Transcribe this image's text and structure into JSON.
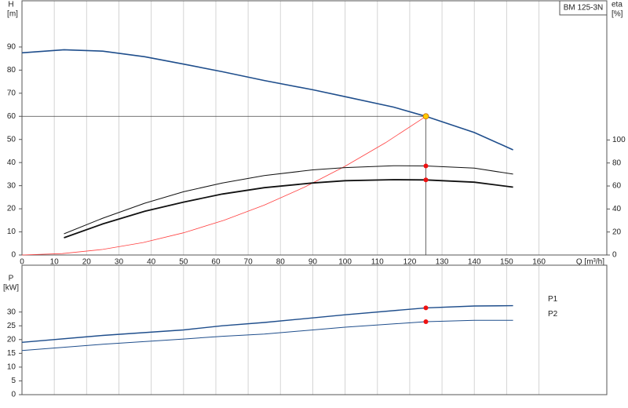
{
  "chart_data": [
    {
      "type": "line",
      "title": "BM 125-3N",
      "ylabel": "H",
      "yunit": "[m]",
      "y2label": "eta",
      "y2unit": "[%]",
      "xlabel": "Q [m³/h]",
      "xlim": [
        0,
        181
      ],
      "xticks": [
        0,
        10,
        20,
        30,
        40,
        50,
        60,
        70,
        80,
        90,
        100,
        110,
        120,
        130,
        140,
        150,
        160
      ],
      "ylim": [
        0,
        110
      ],
      "yticks": [
        0,
        10,
        20,
        30,
        40,
        50,
        60,
        70,
        80,
        90
      ],
      "y2lim": [
        0,
        221
      ],
      "y2ticks": [
        0,
        20,
        40,
        60,
        80,
        100
      ],
      "grid": true,
      "duty_x": 125,
      "duty_color": "#ffcc00",
      "dot_color": "#ee1111",
      "series": [
        {
          "color": "#1f4e8c",
          "width": 1.6,
          "x": [
            0,
            13,
            25,
            38,
            50,
            62,
            75,
            90,
            100,
            115,
            125,
            140,
            152
          ],
          "values": [
            87.5,
            88.8,
            88.2,
            85.8,
            82.6,
            79.3,
            75.5,
            71.5,
            68.5,
            64,
            60,
            53,
            45.5
          ],
          "duty": true
        },
        {
          "color": "#ff4040",
          "width": 0.8,
          "x": [
            0,
            12.5,
            25,
            37.5,
            50,
            62.5,
            75,
            87.5,
            100,
            112.5,
            125
          ],
          "values": [
            0,
            0.6,
            2.4,
            5.4,
            9.6,
            15,
            21.6,
            29.4,
            38.4,
            48.6,
            60
          ]
        },
        {
          "color": "#111111",
          "width": 1,
          "axis": "y2",
          "x": [
            13,
            25,
            38,
            50,
            62,
            75,
            90,
            100,
            115,
            125,
            140,
            152
          ],
          "values": [
            18.4,
            32,
            45,
            55,
            62.6,
            69,
            74,
            76,
            77.6,
            77.4,
            75.5,
            70.3
          ],
          "dot": true
        },
        {
          "color": "#111111",
          "width": 1.8,
          "axis": "y2",
          "x": [
            13,
            25,
            38,
            50,
            62,
            75,
            90,
            100,
            115,
            125,
            140,
            152
          ],
          "values": [
            15,
            27,
            38,
            46,
            53,
            58.5,
            62.6,
            64.6,
            65.5,
            65.3,
            63.3,
            59
          ],
          "dot": true
        }
      ]
    },
    {
      "type": "line",
      "ylabel": "P",
      "yunit": "[kW]",
      "xlim": [
        0,
        181
      ],
      "ylim": [
        0,
        47
      ],
      "yticks": [
        0,
        5,
        10,
        15,
        20,
        25,
        30
      ],
      "series": [
        {
          "name": "P1",
          "color": "#1f4e8c",
          "width": 1.4,
          "x": [
            0,
            25,
            50,
            62,
            75,
            100,
            125,
            140,
            152
          ],
          "values": [
            19,
            21.5,
            23.5,
            25,
            26.2,
            29,
            31.5,
            32.2,
            32.3
          ],
          "dot": true
        },
        {
          "name": "P2",
          "color": "#1f4e8c",
          "width": 1,
          "x": [
            0,
            25,
            50,
            62,
            75,
            100,
            125,
            140,
            152
          ],
          "values": [
            16,
            18.3,
            20.2,
            21.2,
            22,
            24.5,
            26.5,
            27,
            27
          ],
          "dot": true
        }
      ]
    }
  ]
}
